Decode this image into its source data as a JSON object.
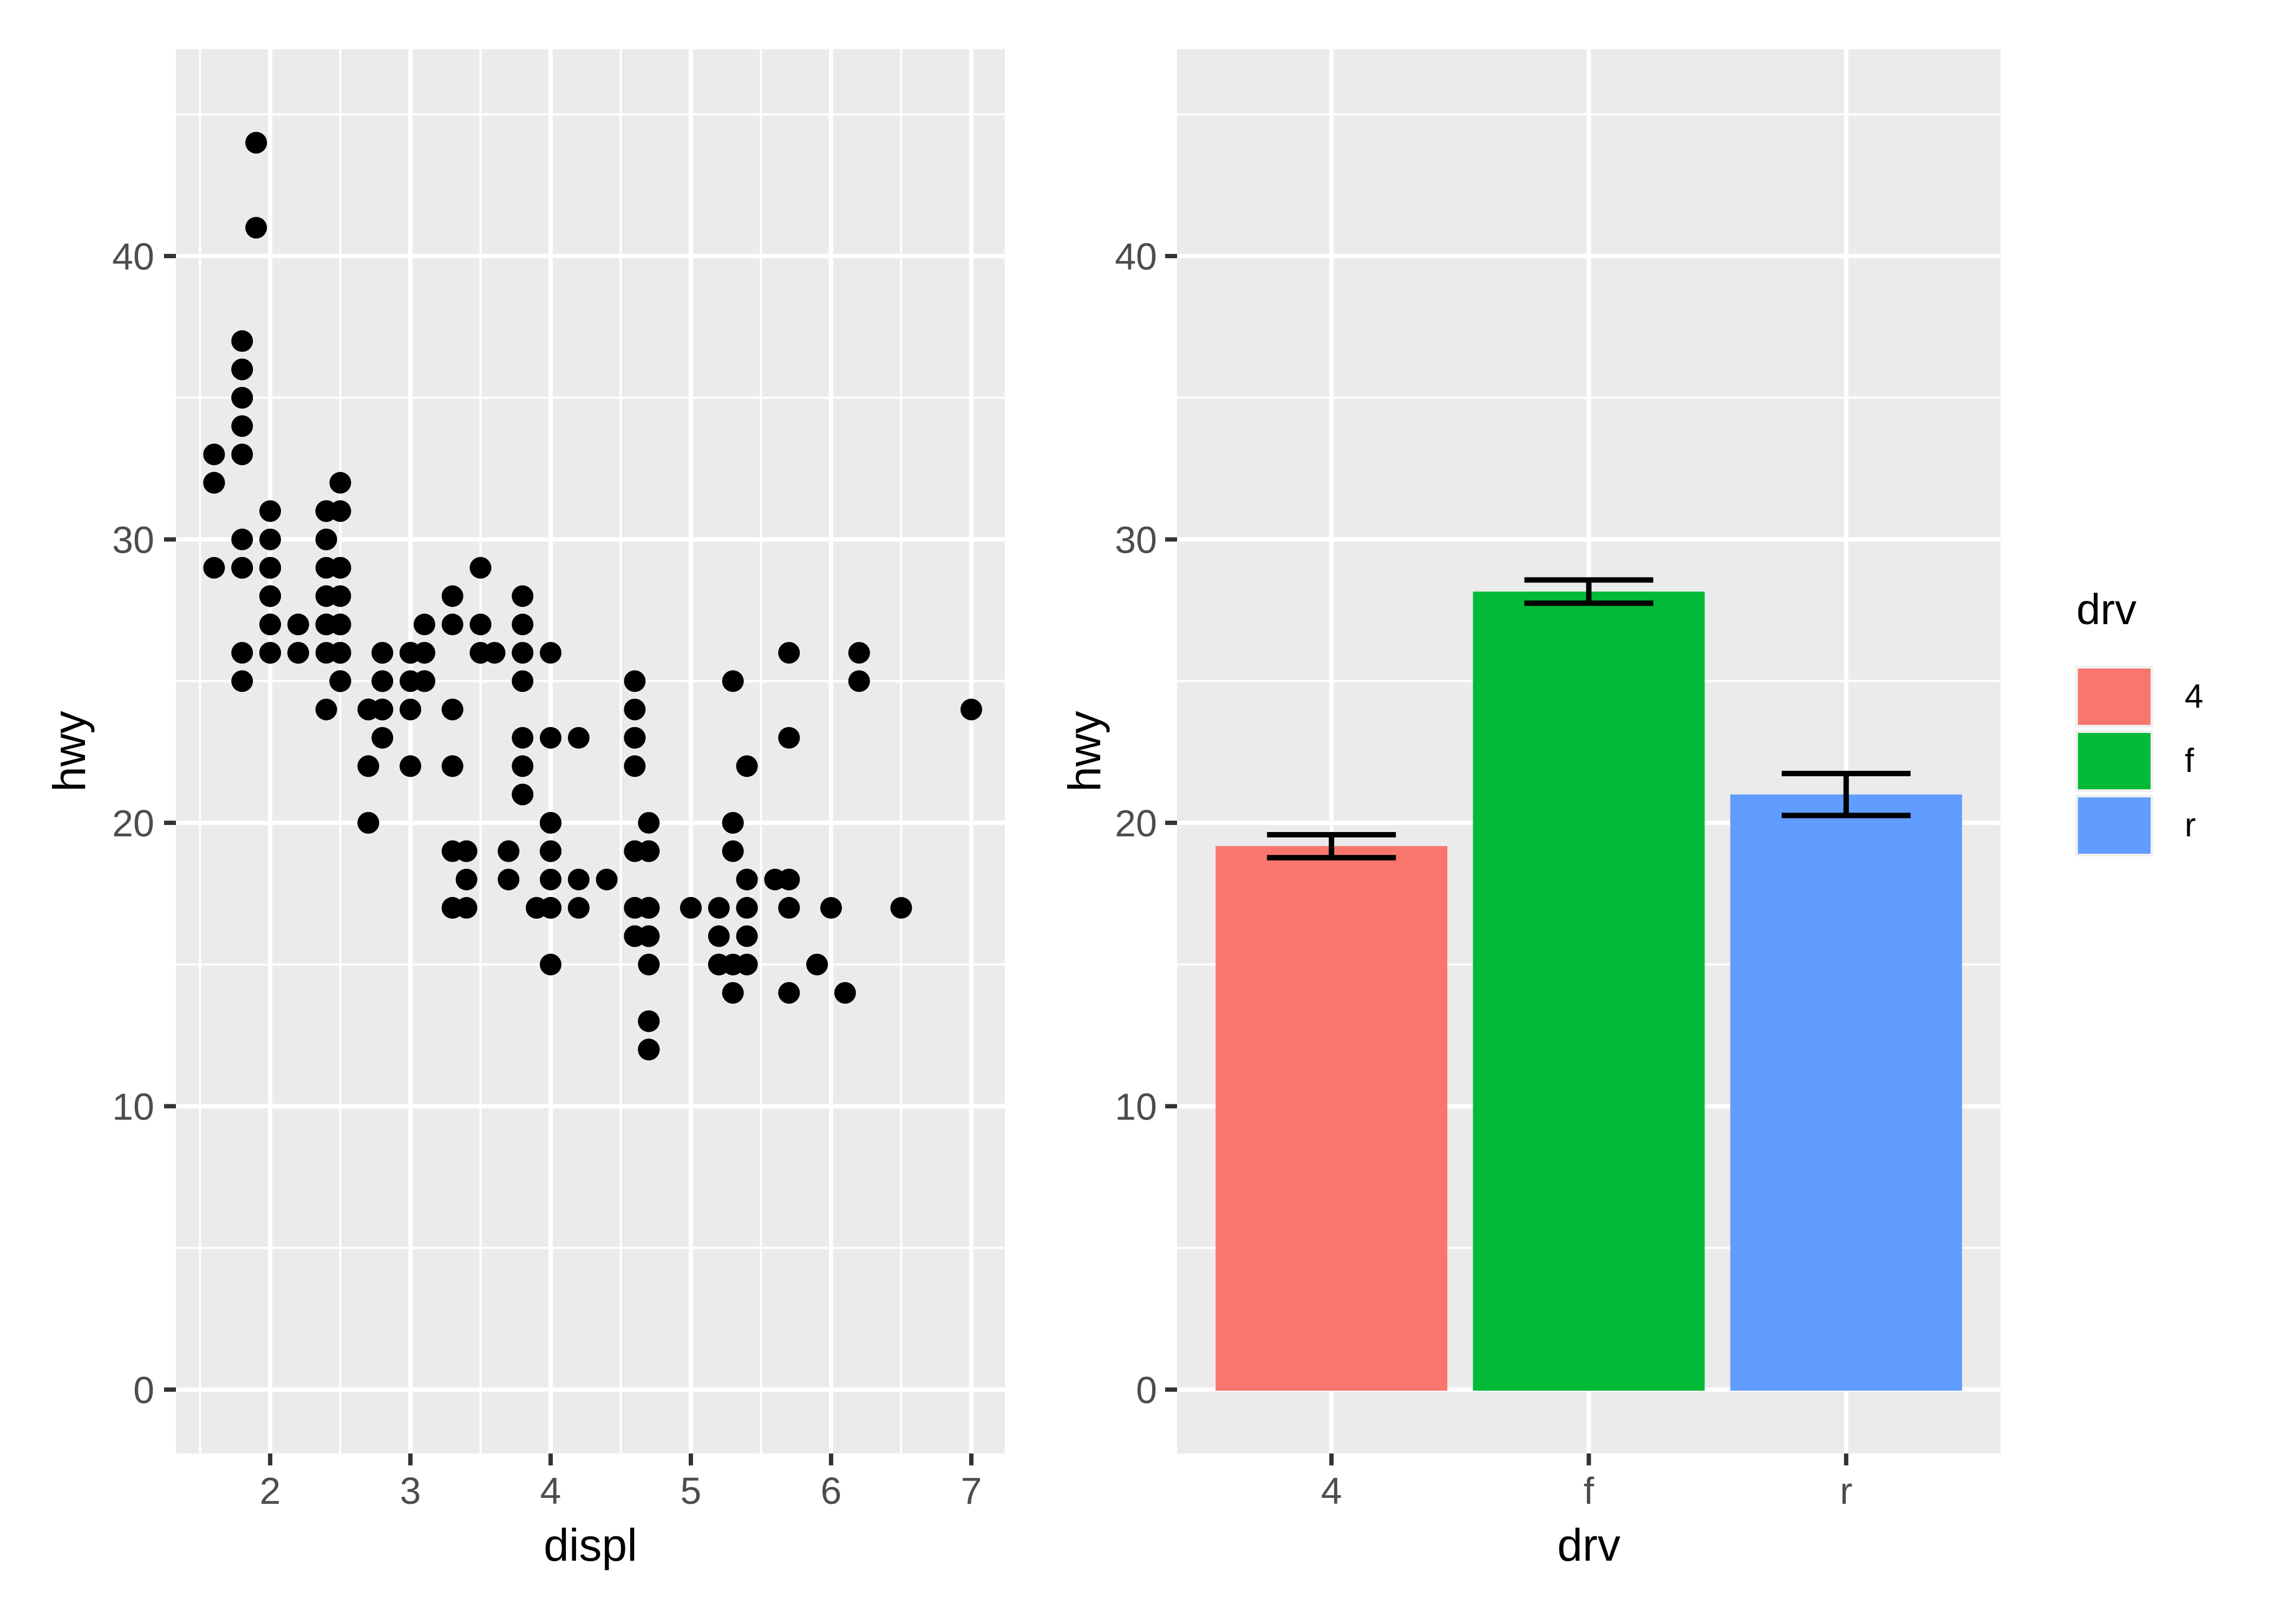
{
  "figure": {
    "background": "#FFFFFF",
    "panel_background": "#EBEBEB",
    "grid_color": "#FFFFFF",
    "tick_color": "#333333",
    "tick_label_color": "#4D4D4D",
    "title_color": "#000000"
  },
  "legend": {
    "title": "drv",
    "key_background": "#F0F0F0",
    "entries": [
      {
        "label": "4",
        "color": "#F8766D"
      },
      {
        "label": "f",
        "color": "#00BA38"
      },
      {
        "label": "r",
        "color": "#619CFF"
      }
    ]
  },
  "chart_data": [
    {
      "type": "scatter",
      "title": "",
      "xlabel": "displ",
      "ylabel": "hwy",
      "xlim": [
        1.33,
        7.27
      ],
      "ylim": [
        -2.25,
        47.3
      ],
      "x_ticks": [
        2,
        3,
        4,
        5,
        6,
        7
      ],
      "x_minor": [
        1.5,
        2.5,
        3.5,
        4.5,
        5.5,
        6.5
      ],
      "y_ticks": [
        0,
        10,
        20,
        30,
        40
      ],
      "y_minor": [
        5,
        15,
        25,
        35,
        45
      ],
      "grid": true,
      "legend_position": "none",
      "point_color": "#000000",
      "points": [
        [
          1.8,
          29
        ],
        [
          1.8,
          29
        ],
        [
          2,
          31
        ],
        [
          2,
          30
        ],
        [
          2.8,
          26
        ],
        [
          2.8,
          26
        ],
        [
          3.1,
          27
        ],
        [
          1.8,
          26
        ],
        [
          1.8,
          25
        ],
        [
          2,
          28
        ],
        [
          2,
          27
        ],
        [
          2.8,
          25
        ],
        [
          2.8,
          25
        ],
        [
          3.1,
          25
        ],
        [
          3.1,
          25
        ],
        [
          2.8,
          24
        ],
        [
          3.1,
          25
        ],
        [
          4.2,
          23
        ],
        [
          5.3,
          20
        ],
        [
          5.3,
          15
        ],
        [
          5.3,
          20
        ],
        [
          5.7,
          17
        ],
        [
          6,
          17
        ],
        [
          5.7,
          26
        ],
        [
          5.7,
          23
        ],
        [
          6.2,
          26
        ],
        [
          6.2,
          25
        ],
        [
          7,
          24
        ],
        [
          5.3,
          14
        ],
        [
          5.3,
          19
        ],
        [
          5.7,
          14
        ],
        [
          6.5,
          17
        ],
        [
          2.4,
          27
        ],
        [
          2.4,
          30
        ],
        [
          3.1,
          26
        ],
        [
          3.5,
          29
        ],
        [
          3.6,
          26
        ],
        [
          2.4,
          24
        ],
        [
          3,
          24
        ],
        [
          3.3,
          22
        ],
        [
          3.3,
          22
        ],
        [
          3.3,
          24
        ],
        [
          3.3,
          24
        ],
        [
          3.3,
          17
        ],
        [
          3.8,
          22
        ],
        [
          3.8,
          21
        ],
        [
          3.8,
          23
        ],
        [
          4,
          23
        ],
        [
          3.7,
          19
        ],
        [
          3.7,
          18
        ],
        [
          3.9,
          17
        ],
        [
          3.9,
          17
        ],
        [
          4.7,
          19
        ],
        [
          4.7,
          19
        ],
        [
          4.7,
          12
        ],
        [
          5.2,
          17
        ],
        [
          5.2,
          15
        ],
        [
          3.9,
          17
        ],
        [
          4.7,
          17
        ],
        [
          4.7,
          12
        ],
        [
          4.7,
          17
        ],
        [
          4.7,
          16
        ],
        [
          5.2,
          15
        ],
        [
          5.9,
          15
        ],
        [
          4.7,
          17
        ],
        [
          4.7,
          15
        ],
        [
          4.7,
          13
        ],
        [
          4.7,
          13
        ],
        [
          4.7,
          17
        ],
        [
          4.7,
          16
        ],
        [
          4.7,
          16
        ],
        [
          4.7,
          12
        ],
        [
          5.2,
          16
        ],
        [
          5.7,
          17
        ],
        [
          4.6,
          17
        ],
        [
          5.4,
          17
        ],
        [
          5.4,
          18
        ],
        [
          4,
          17
        ],
        [
          4,
          17
        ],
        [
          4,
          19
        ],
        [
          4,
          19
        ],
        [
          4.6,
          19
        ],
        [
          5,
          17
        ],
        [
          4.2,
          17
        ],
        [
          4.2,
          17
        ],
        [
          4.6,
          16
        ],
        [
          4.6,
          16
        ],
        [
          4.6,
          17
        ],
        [
          5.4,
          15
        ],
        [
          5.4,
          17
        ],
        [
          3.8,
          26
        ],
        [
          3.8,
          25
        ],
        [
          4,
          26
        ],
        [
          4.6,
          24
        ],
        [
          4.6,
          25
        ],
        [
          4.6,
          23
        ],
        [
          4.6,
          22
        ],
        [
          4.6,
          23
        ],
        [
          5.4,
          22
        ],
        [
          1.6,
          33
        ],
        [
          1.6,
          32
        ],
        [
          1.6,
          32
        ],
        [
          1.6,
          29
        ],
        [
          1.6,
          32
        ],
        [
          1.8,
          34
        ],
        [
          1.8,
          36
        ],
        [
          1.8,
          36
        ],
        [
          2,
          29
        ],
        [
          2.4,
          26
        ],
        [
          2.4,
          27
        ],
        [
          2.4,
          30
        ],
        [
          2.4,
          31
        ],
        [
          2.5,
          26
        ],
        [
          2.5,
          26
        ],
        [
          3.3,
          28
        ],
        [
          2,
          26
        ],
        [
          2,
          29
        ],
        [
          2,
          28
        ],
        [
          2,
          27
        ],
        [
          2.7,
          24
        ],
        [
          2.7,
          24
        ],
        [
          2.7,
          24
        ],
        [
          3,
          22
        ],
        [
          3.7,
          19
        ],
        [
          4,
          20
        ],
        [
          4.7,
          17
        ],
        [
          4.7,
          12
        ],
        [
          4.7,
          19
        ],
        [
          5.7,
          18
        ],
        [
          6.1,
          14
        ],
        [
          4,
          15
        ],
        [
          4.2,
          18
        ],
        [
          4.4,
          18
        ],
        [
          4.6,
          17
        ],
        [
          5.4,
          17
        ],
        [
          5.4,
          16
        ],
        [
          5.4,
          18
        ],
        [
          4,
          17
        ],
        [
          4,
          19
        ],
        [
          4.6,
          19
        ],
        [
          5,
          17
        ],
        [
          2.4,
          29
        ],
        [
          2.4,
          27
        ],
        [
          2.5,
          31
        ],
        [
          2.5,
          32
        ],
        [
          3.5,
          27
        ],
        [
          3.5,
          26
        ],
        [
          3,
          26
        ],
        [
          3,
          25
        ],
        [
          3.5,
          26
        ],
        [
          3.3,
          19
        ],
        [
          3.3,
          17
        ],
        [
          4,
          20
        ],
        [
          5.6,
          18
        ],
        [
          3.1,
          26
        ],
        [
          3.8,
          26
        ],
        [
          3.8,
          27
        ],
        [
          3.8,
          28
        ],
        [
          5.3,
          25
        ],
        [
          2.5,
          26
        ],
        [
          2.5,
          27
        ],
        [
          2.5,
          25
        ],
        [
          2.5,
          25
        ],
        [
          2.5,
          27
        ],
        [
          2.5,
          25
        ],
        [
          2.2,
          26
        ],
        [
          2.2,
          26
        ],
        [
          2.5,
          26
        ],
        [
          2.5,
          26
        ],
        [
          2.5,
          25
        ],
        [
          2.5,
          27
        ],
        [
          2.5,
          26
        ],
        [
          2.5,
          25
        ],
        [
          2.7,
          20
        ],
        [
          2.7,
          20
        ],
        [
          2.7,
          22
        ],
        [
          3.4,
          17
        ],
        [
          3.4,
          19
        ],
        [
          4,
          18
        ],
        [
          4.7,
          20
        ],
        [
          2.2,
          26
        ],
        [
          2.2,
          27
        ],
        [
          2.4,
          28
        ],
        [
          2.4,
          31
        ],
        [
          3,
          26
        ],
        [
          3,
          26
        ],
        [
          3.5,
          27
        ],
        [
          2.2,
          26
        ],
        [
          2.2,
          27
        ],
        [
          2.4,
          31
        ],
        [
          2.4,
          31
        ],
        [
          3,
          26
        ],
        [
          3,
          26
        ],
        [
          3.3,
          27
        ],
        [
          1.8,
          30
        ],
        [
          1.8,
          33
        ],
        [
          1.8,
          35
        ],
        [
          1.8,
          37
        ],
        [
          1.8,
          35
        ],
        [
          4.7,
          17
        ],
        [
          5.7,
          18
        ],
        [
          4.7,
          15
        ],
        [
          4.7,
          17
        ],
        [
          2.7,
          20
        ],
        [
          2.7,
          22
        ],
        [
          3.4,
          19
        ],
        [
          3.4,
          18
        ],
        [
          4,
          20
        ],
        [
          2,
          29
        ],
        [
          2,
          26
        ],
        [
          2,
          29
        ],
        [
          2,
          29
        ],
        [
          2.8,
          24
        ],
        [
          1.9,
          44
        ],
        [
          2,
          29
        ],
        [
          2,
          26
        ],
        [
          2,
          29
        ],
        [
          2,
          29
        ],
        [
          2.5,
          29
        ],
        [
          2.5,
          29
        ],
        [
          2.8,
          23
        ],
        [
          2.8,
          24
        ],
        [
          1.9,
          44
        ],
        [
          1.9,
          41
        ],
        [
          2,
          29
        ],
        [
          2,
          26
        ],
        [
          2.5,
          28
        ],
        [
          2.5,
          29
        ],
        [
          1.8,
          29
        ],
        [
          1.8,
          29
        ],
        [
          2,
          28
        ],
        [
          2,
          29
        ],
        [
          2.8,
          26
        ],
        [
          2.8,
          26
        ],
        [
          3.6,
          26
        ]
      ]
    },
    {
      "type": "bar",
      "title": "",
      "xlabel": "drv",
      "ylabel": "hwy",
      "categories": [
        "4",
        "f",
        "r"
      ],
      "values": [
        19.18,
        28.16,
        21.0
      ],
      "error_low": [
        18.77,
        27.75,
        20.26
      ],
      "error_high": [
        19.58,
        28.57,
        21.74
      ],
      "bar_colors": [
        "#F8766D",
        "#00BA38",
        "#619CFF"
      ],
      "error_color": "#000000",
      "y_ticks": [
        0,
        10,
        20,
        30,
        40
      ],
      "y_minor": [
        5,
        15,
        25,
        35,
        45
      ],
      "ylim": [
        -2.25,
        47.3
      ],
      "grid": true,
      "legend_position": "right"
    }
  ]
}
